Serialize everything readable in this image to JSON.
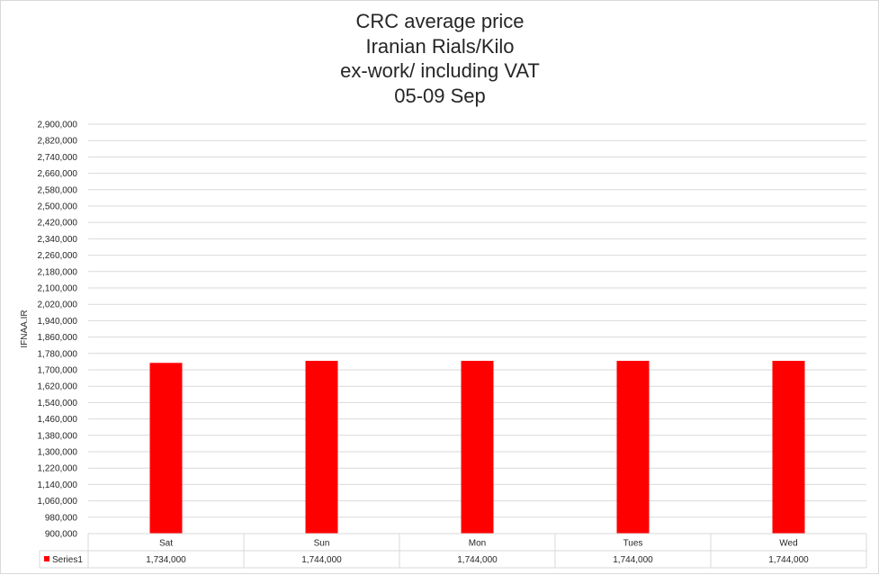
{
  "chart_data": {
    "type": "bar",
    "title_lines": [
      "CRC average price",
      "Iranian Rials/Kilo",
      "ex-work/ including VAT",
      "05-09 Sep"
    ],
    "ylabel": "IFNAA.IR",
    "xlabel": "",
    "categories": [
      "Sat",
      "Sun",
      "Mon",
      "Tues",
      "Wed"
    ],
    "series": [
      {
        "name": "Series1",
        "color": "#ff0000",
        "values": [
          1734000,
          1744000,
          1744000,
          1744000,
          1744000
        ],
        "value_labels": [
          "1,734,000",
          "1,744,000",
          "1,744,000",
          "1,744,000",
          "1,744,000"
        ]
      }
    ],
    "ylim": [
      900000,
      2900000
    ],
    "ytick_step": 80000,
    "ytick_labels": [
      "900,000",
      "980,000",
      "1,060,000",
      "1,140,000",
      "1,220,000",
      "1,300,000",
      "1,380,000",
      "1,460,000",
      "1,540,000",
      "1,620,000",
      "1,700,000",
      "1,780,000",
      "1,860,000",
      "1,940,000",
      "2,020,000",
      "2,100,000",
      "2,180,000",
      "2,260,000",
      "2,340,000",
      "2,420,000",
      "2,500,000",
      "2,580,000",
      "2,660,000",
      "2,740,000",
      "2,820,000",
      "2,900,000"
    ],
    "grid": true,
    "legend": "data-table",
    "colors": {
      "grid": "#d9d9d9",
      "text": "#262626"
    }
  }
}
